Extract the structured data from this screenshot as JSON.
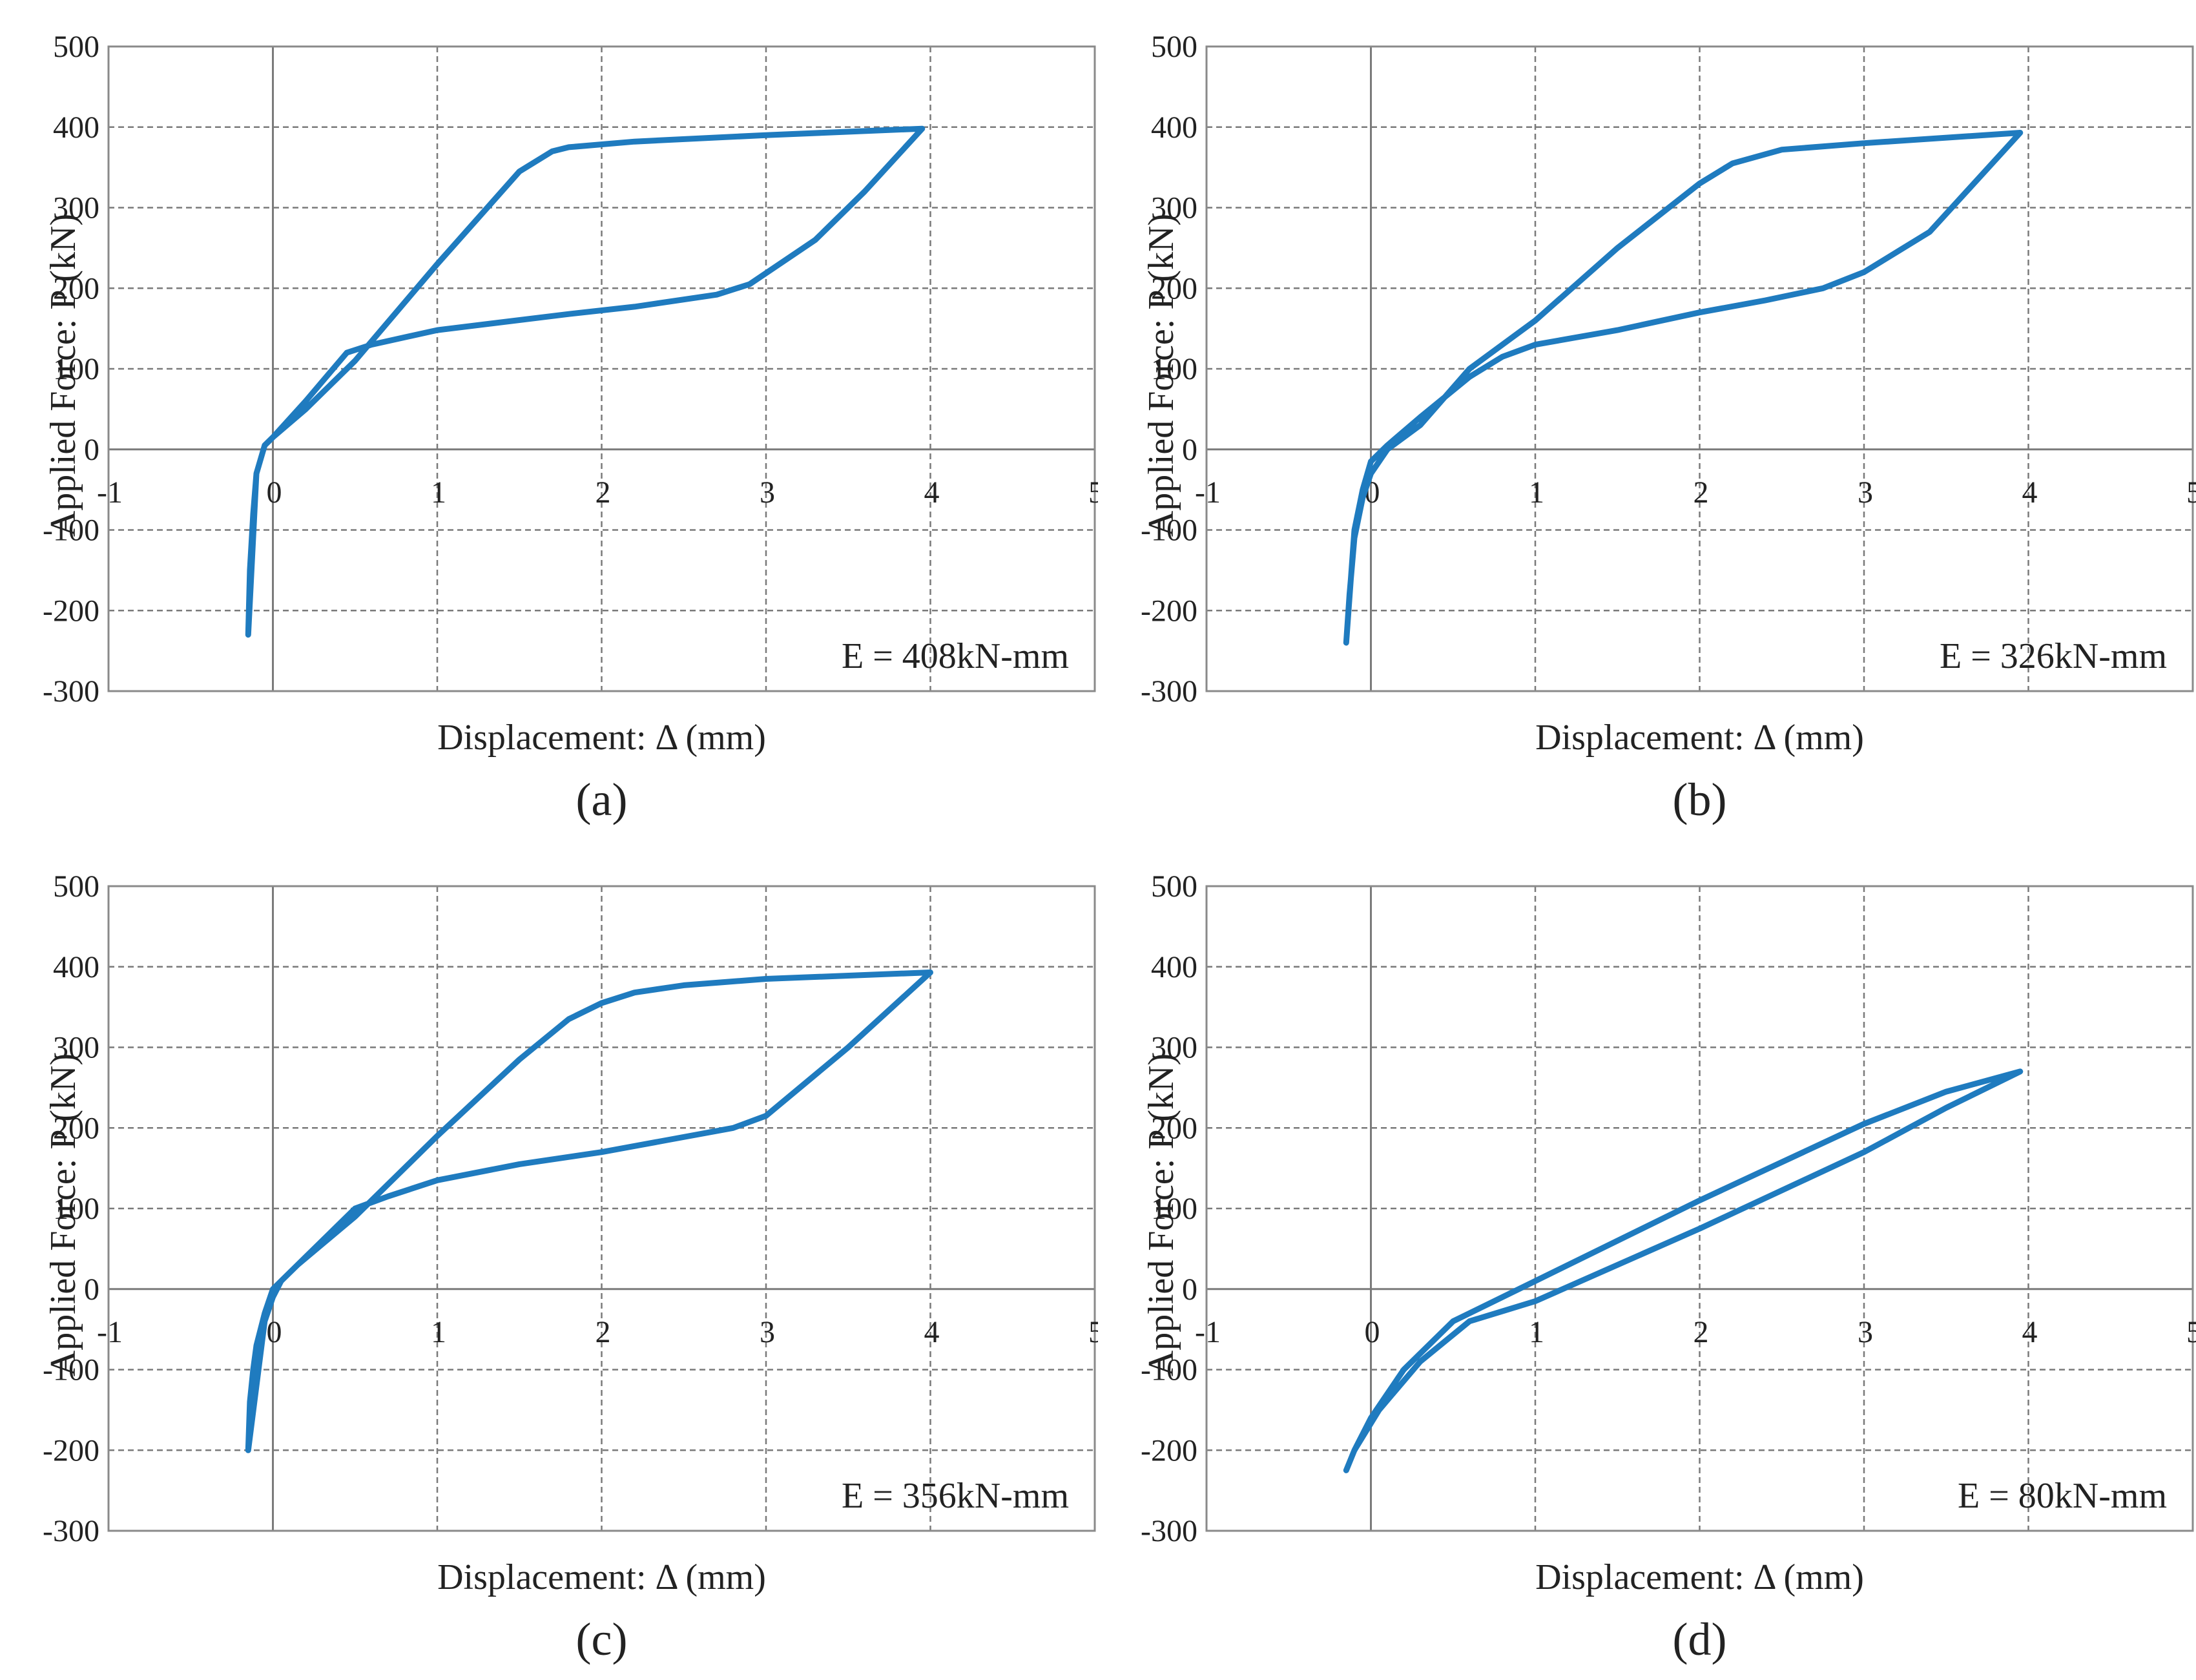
{
  "chart_data": [
    {
      "type": "line",
      "subplot_label": "(a)",
      "xlabel": "Displacement: Δ (mm)",
      "ylabel": "Applied Force: P (kN)",
      "xlim": [
        -1,
        5
      ],
      "ylim": [
        -300,
        500
      ],
      "xticks": [
        -1,
        0,
        1,
        2,
        3,
        4,
        5
      ],
      "yticks": [
        500,
        400,
        300,
        200,
        100,
        0,
        -100,
        -200,
        -300
      ],
      "grid": true,
      "annotation": "E = 408kN-mm",
      "series": [
        {
          "name": "hysteresis loop",
          "x": [
            -0.15,
            -0.14,
            -0.12,
            -0.1,
            -0.05,
            0.0,
            0.2,
            0.5,
            1.0,
            1.5,
            1.7,
            1.8,
            2.2,
            3.0,
            3.95,
            3.6,
            3.3,
            2.9,
            2.7,
            2.2,
            1.8,
            1.0,
            0.6,
            0.45,
            0.2,
            0.0,
            -0.05,
            -0.1
          ],
          "y": [
            -230,
            -150,
            -80,
            -30,
            5,
            15,
            50,
            110,
            230,
            345,
            370,
            375,
            382,
            390,
            398,
            320,
            260,
            205,
            192,
            177,
            168,
            148,
            130,
            120,
            60,
            15,
            5,
            -30
          ]
        }
      ]
    },
    {
      "type": "line",
      "subplot_label": "(b)",
      "xlabel": "Displacement: Δ (mm)",
      "ylabel": "Applied Force: P (kN)",
      "xlim": [
        -1,
        5
      ],
      "ylim": [
        -300,
        500
      ],
      "xticks": [
        -1,
        0,
        1,
        2,
        3,
        4,
        5
      ],
      "yticks": [
        500,
        400,
        300,
        200,
        100,
        0,
        -100,
        -200,
        -300
      ],
      "grid": true,
      "annotation": "E = 326kN-mm",
      "series": [
        {
          "name": "hysteresis loop",
          "x": [
            -0.15,
            -0.13,
            -0.1,
            -0.05,
            0.0,
            0.1,
            0.3,
            0.6,
            1.0,
            1.5,
            2.0,
            2.2,
            2.5,
            3.0,
            3.95,
            3.4,
            3.0,
            2.75,
            2.4,
            2.0,
            1.5,
            1.0,
            0.8,
            0.6,
            0.3,
            0.1,
            0.0,
            -0.05,
            -0.1
          ],
          "y": [
            -240,
            -180,
            -110,
            -60,
            -30,
            0,
            30,
            100,
            160,
            250,
            330,
            355,
            372,
            380,
            393,
            270,
            220,
            200,
            185,
            170,
            148,
            130,
            115,
            90,
            40,
            5,
            -15,
            -50,
            -100
          ]
        }
      ]
    },
    {
      "type": "line",
      "subplot_label": "(c)",
      "xlabel": "Displacement: Δ (mm)",
      "ylabel": "Applied Force: P (kN)",
      "xlim": [
        -1,
        5
      ],
      "ylim": [
        -300,
        500
      ],
      "xticks": [
        -1,
        0,
        1,
        2,
        3,
        4,
        5
      ],
      "yticks": [
        500,
        400,
        300,
        200,
        100,
        0,
        -100,
        -200,
        -300
      ],
      "grid": true,
      "annotation": "E = 356kN-mm",
      "series": [
        {
          "name": "hysteresis loop",
          "x": [
            -0.15,
            -0.14,
            -0.12,
            -0.1,
            -0.05,
            0.0,
            0.15,
            0.5,
            1.0,
            1.5,
            1.8,
            2.0,
            2.2,
            2.5,
            3.0,
            4.0,
            3.5,
            3.0,
            2.8,
            2.4,
            2.0,
            1.5,
            1.0,
            0.7,
            0.5,
            0.2,
            0.05,
            0.0,
            -0.05
          ],
          "y": [
            -200,
            -140,
            -100,
            -70,
            -30,
            0,
            30,
            90,
            190,
            285,
            335,
            355,
            368,
            377,
            385,
            393,
            300,
            215,
            200,
            185,
            170,
            155,
            135,
            115,
            100,
            40,
            10,
            -10,
            -40
          ]
        }
      ]
    },
    {
      "type": "line",
      "subplot_label": "(d)",
      "xlabel": "Displacement: Δ (mm)",
      "ylabel": "Applied Force: P (kN)",
      "xlim": [
        -1,
        5
      ],
      "ylim": [
        -300,
        500
      ],
      "xticks": [
        -1,
        0,
        1,
        2,
        3,
        4,
        5
      ],
      "yticks": [
        500,
        400,
        300,
        200,
        100,
        0,
        -100,
        -200,
        -300
      ],
      "grid": true,
      "annotation": "E = 80kN-mm",
      "series": [
        {
          "name": "hysteresis loop",
          "x": [
            -0.15,
            -0.1,
            0.0,
            0.2,
            0.5,
            1.0,
            2.0,
            3.0,
            3.5,
            3.95,
            3.5,
            3.0,
            2.0,
            1.0,
            0.6,
            0.3,
            0.05,
            -0.1,
            -0.15
          ],
          "y": [
            -225,
            -200,
            -160,
            -100,
            -40,
            10,
            110,
            205,
            245,
            270,
            225,
            170,
            75,
            -15,
            -40,
            -90,
            -150,
            -200,
            -225
          ]
        }
      ]
    }
  ]
}
